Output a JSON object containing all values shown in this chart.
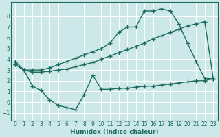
{
  "title": "",
  "xlabel": "Humidex (Indice chaleur)",
  "bg_color": "#cce8e8",
  "line_color": "#1a6b5e",
  "grid_color": "#b0d8d8",
  "xlim": [
    -0.5,
    23.5
  ],
  "ylim": [
    -1.7,
    9.3
  ],
  "yticks": [
    -1,
    0,
    1,
    2,
    3,
    4,
    5,
    6,
    7,
    8
  ],
  "xticks": [
    0,
    1,
    2,
    3,
    4,
    5,
    6,
    7,
    8,
    9,
    10,
    11,
    12,
    13,
    14,
    15,
    16,
    17,
    18,
    19,
    20,
    21,
    22,
    23
  ],
  "line1_x": [
    0,
    1,
    2,
    3,
    4,
    5,
    6,
    7,
    8,
    9,
    10,
    11,
    12,
    13,
    14,
    15,
    16,
    17,
    18,
    19,
    20,
    21,
    22,
    23
  ],
  "line1_y": [
    3.8,
    3.0,
    3.0,
    3.0,
    3.2,
    3.5,
    3.8,
    4.1,
    4.4,
    4.7,
    5.0,
    5.5,
    6.5,
    7.0,
    7.0,
    8.5,
    8.5,
    8.7,
    8.5,
    7.3,
    5.5,
    3.8,
    2.2,
    2.2
  ],
  "line2_x": [
    0,
    1,
    2,
    3,
    4,
    5,
    6,
    7,
    8,
    9,
    10,
    11,
    12,
    13,
    14,
    15,
    16,
    17,
    18,
    19,
    20,
    21,
    22,
    23
  ],
  "line2_y": [
    3.5,
    3.0,
    2.8,
    2.8,
    2.9,
    3.0,
    3.1,
    3.3,
    3.5,
    3.7,
    4.0,
    4.3,
    4.6,
    4.9,
    5.2,
    5.5,
    5.9,
    6.2,
    6.5,
    6.8,
    7.1,
    7.3,
    7.5,
    2.2
  ],
  "line3_x": [
    0,
    1,
    2,
    3,
    4,
    5,
    6,
    7,
    8,
    9,
    10,
    11,
    12,
    13,
    14,
    15,
    16,
    17,
    18,
    19,
    20,
    21,
    22,
    23
  ],
  "line3_y": [
    3.5,
    3.0,
    1.5,
    1.1,
    0.2,
    -0.3,
    -0.5,
    -0.7,
    0.7,
    2.5,
    1.2,
    1.2,
    1.3,
    1.3,
    1.4,
    1.5,
    1.5,
    1.6,
    1.7,
    1.8,
    1.9,
    2.0,
    2.0,
    2.2
  ],
  "marker": "+",
  "markersize": 4,
  "linewidth": 1.0
}
